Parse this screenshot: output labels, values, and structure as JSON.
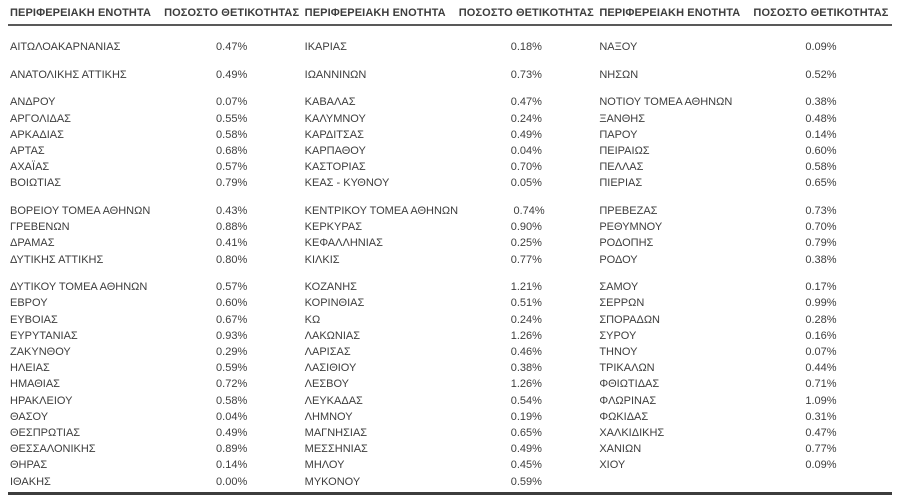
{
  "table": {
    "header": {
      "region_label": "ΠΕΡΙΦΕΡΕΙΑΚΗ ΕΝΟΤΗΤΑ",
      "positivity_label": "ΠΟΣΟΣΤΟ ΘΕΤΙΚΟΤΗΤΑΣ"
    },
    "groups": [
      {
        "rows": [
          [
            {
              "region": "ΑΙΤΩΛΟΑΚΑΡΝΑΝΙΑΣ",
              "rate": "0.47%"
            },
            {
              "region": "ΙΚΑΡΙΑΣ",
              "rate": "0.18%"
            },
            {
              "region": "ΝΑΞΟΥ",
              "rate": "0.09%"
            }
          ]
        ]
      },
      {
        "rows": [
          [
            {
              "region": "ΑΝΑΤΟΛΙΚΗΣ ΑΤΤΙΚΗΣ",
              "rate": "0.49%"
            },
            {
              "region": "ΙΩΑΝΝΙΝΩΝ",
              "rate": "0.73%"
            },
            {
              "region": "ΝΗΣΩΝ",
              "rate": "0.52%"
            }
          ]
        ]
      },
      {
        "rows": [
          [
            {
              "region": "ΑΝΔΡΟΥ",
              "rate": "0.07%"
            },
            {
              "region": "ΚΑΒΑΛΑΣ",
              "rate": "0.47%"
            },
            {
              "region": "ΝΟΤΙΟΥ ΤΟΜΕΑ ΑΘΗΝΩΝ",
              "rate": "0.38%"
            }
          ],
          [
            {
              "region": "ΑΡΓΟΛΙΔΑΣ",
              "rate": "0.55%"
            },
            {
              "region": "ΚΑΛΥΜΝΟΥ",
              "rate": "0.24%"
            },
            {
              "region": "ΞΑΝΘΗΣ",
              "rate": "0.48%"
            }
          ],
          [
            {
              "region": "ΑΡΚΑΔΙΑΣ",
              "rate": "0.58%"
            },
            {
              "region": "ΚΑΡΔΙΤΣΑΣ",
              "rate": "0.49%"
            },
            {
              "region": "ΠΑΡΟΥ",
              "rate": "0.14%"
            }
          ],
          [
            {
              "region": "ΑΡΤΑΣ",
              "rate": "0.68%"
            },
            {
              "region": "ΚΑΡΠΑΘΟΥ",
              "rate": "0.04%"
            },
            {
              "region": "ΠΕΙΡΑΙΩΣ",
              "rate": "0.60%"
            }
          ],
          [
            {
              "region": "ΑΧΑΪΑΣ",
              "rate": "0.57%"
            },
            {
              "region": "ΚΑΣΤΟΡΙΑΣ",
              "rate": "0.70%"
            },
            {
              "region": "ΠΕΛΛΑΣ",
              "rate": "0.58%"
            }
          ],
          [
            {
              "region": "ΒΟΙΩΤΙΑΣ",
              "rate": "0.79%"
            },
            {
              "region": "ΚΕΑΣ - ΚΥΘΝΟΥ",
              "rate": "0.05%"
            },
            {
              "region": "ΠΙΕΡΙΑΣ",
              "rate": "0.65%"
            }
          ]
        ]
      },
      {
        "rows": [
          [
            {
              "region": "ΒΟΡΕΙΟΥ ΤΟΜΕΑ ΑΘΗΝΩΝ",
              "rate": "0.43%"
            },
            {
              "region": "ΚΕΝΤΡΙΚΟΥ ΤΟΜΕΑ ΑΘΗΝΩΝ",
              "rate": "0.74%"
            },
            {
              "region": "ΠΡΕΒΕΖΑΣ",
              "rate": "0.73%"
            }
          ],
          [
            {
              "region": "ΓΡΕΒΕΝΩΝ",
              "rate": "0.88%"
            },
            {
              "region": "ΚΕΡΚΥΡΑΣ",
              "rate": "0.90%"
            },
            {
              "region": "ΡΕΘΥΜΝΟΥ",
              "rate": "0.70%"
            }
          ],
          [
            {
              "region": "ΔΡΑΜΑΣ",
              "rate": "0.41%"
            },
            {
              "region": "ΚΕΦΑΛΛΗΝΙΑΣ",
              "rate": "0.25%"
            },
            {
              "region": "ΡΟΔΟΠΗΣ",
              "rate": "0.79%"
            }
          ],
          [
            {
              "region": "ΔΥΤΙΚΗΣ ΑΤΤΙΚΗΣ",
              "rate": "0.80%"
            },
            {
              "region": "ΚΙΛΚΙΣ",
              "rate": "0.77%"
            },
            {
              "region": "ΡΟΔΟΥ",
              "rate": "0.38%"
            }
          ]
        ]
      },
      {
        "rows": [
          [
            {
              "region": "ΔΥΤΙΚΟΥ ΤΟΜΕΑ ΑΘΗΝΩΝ",
              "rate": "0.57%"
            },
            {
              "region": "ΚΟΖΑΝΗΣ",
              "rate": "1.21%"
            },
            {
              "region": "ΣΑΜΟΥ",
              "rate": "0.17%"
            }
          ],
          [
            {
              "region": "ΕΒΡΟΥ",
              "rate": "0.60%"
            },
            {
              "region": "ΚΟΡΙΝΘΙΑΣ",
              "rate": "0.51%"
            },
            {
              "region": "ΣΕΡΡΩΝ",
              "rate": "0.99%"
            }
          ],
          [
            {
              "region": "ΕΥΒΟΙΑΣ",
              "rate": "0.67%"
            },
            {
              "region": "ΚΩ",
              "rate": "0.24%"
            },
            {
              "region": "ΣΠΟΡΑΔΩΝ",
              "rate": "0.28%"
            }
          ],
          [
            {
              "region": "ΕΥΡΥΤΑΝΙΑΣ",
              "rate": "0.93%"
            },
            {
              "region": "ΛΑΚΩΝΙΑΣ",
              "rate": "1.26%"
            },
            {
              "region": "ΣΥΡΟΥ",
              "rate": "0.16%"
            }
          ],
          [
            {
              "region": "ΖΑΚΥΝΘΟΥ",
              "rate": "0.29%"
            },
            {
              "region": "ΛΑΡΙΣΑΣ",
              "rate": "0.46%"
            },
            {
              "region": "ΤΗΝΟΥ",
              "rate": "0.07%"
            }
          ],
          [
            {
              "region": "ΗΛΕΙΑΣ",
              "rate": "0.59%"
            },
            {
              "region": "ΛΑΣΙΘΙΟΥ",
              "rate": "0.38%"
            },
            {
              "region": "ΤΡΙΚΑΛΩΝ",
              "rate": "0.44%"
            }
          ],
          [
            {
              "region": "ΗΜΑΘΙΑΣ",
              "rate": "0.72%"
            },
            {
              "region": "ΛΕΣΒΟΥ",
              "rate": "1.26%"
            },
            {
              "region": "ΦΘΙΩΤΙΔΑΣ",
              "rate": "0.71%"
            }
          ],
          [
            {
              "region": "ΗΡΑΚΛΕΙΟΥ",
              "rate": "0.58%"
            },
            {
              "region": "ΛΕΥΚΑΔΑΣ",
              "rate": "0.54%"
            },
            {
              "region": "ΦΛΩΡΙΝΑΣ",
              "rate": "1.09%"
            }
          ],
          [
            {
              "region": "ΘΑΣΟΥ",
              "rate": "0.04%"
            },
            {
              "region": "ΛΗΜΝΟΥ",
              "rate": "0.19%"
            },
            {
              "region": "ΦΩΚΙΔΑΣ",
              "rate": "0.31%"
            }
          ],
          [
            {
              "region": "ΘΕΣΠΡΩΤΙΑΣ",
              "rate": "0.49%"
            },
            {
              "region": "ΜΑΓΝΗΣΙΑΣ",
              "rate": "0.65%"
            },
            {
              "region": "ΧΑΛΚΙΔΙΚΗΣ",
              "rate": "0.47%"
            }
          ],
          [
            {
              "region": "ΘΕΣΣΑΛΟΝΙΚΗΣ",
              "rate": "0.89%"
            },
            {
              "region": "ΜΕΣΣΗΝΙΑΣ",
              "rate": "0.49%"
            },
            {
              "region": "ΧΑΝΙΩΝ",
              "rate": "0.77%"
            }
          ],
          [
            {
              "region": "ΘΗΡΑΣ",
              "rate": "0.14%"
            },
            {
              "region": "ΜΗΛΟΥ",
              "rate": "0.45%"
            },
            {
              "region": "ΧΙΟΥ",
              "rate": "0.09%"
            }
          ],
          [
            {
              "region": "ΙΘΑΚΗΣ",
              "rate": "0.00%"
            },
            {
              "region": "ΜΥΚΟΝΟΥ",
              "rate": "0.59%"
            },
            null
          ]
        ]
      }
    ]
  },
  "colors": {
    "text": "#3d3d3d",
    "header_rule": "#595959",
    "bottom_rule": "#3d3d3d"
  }
}
